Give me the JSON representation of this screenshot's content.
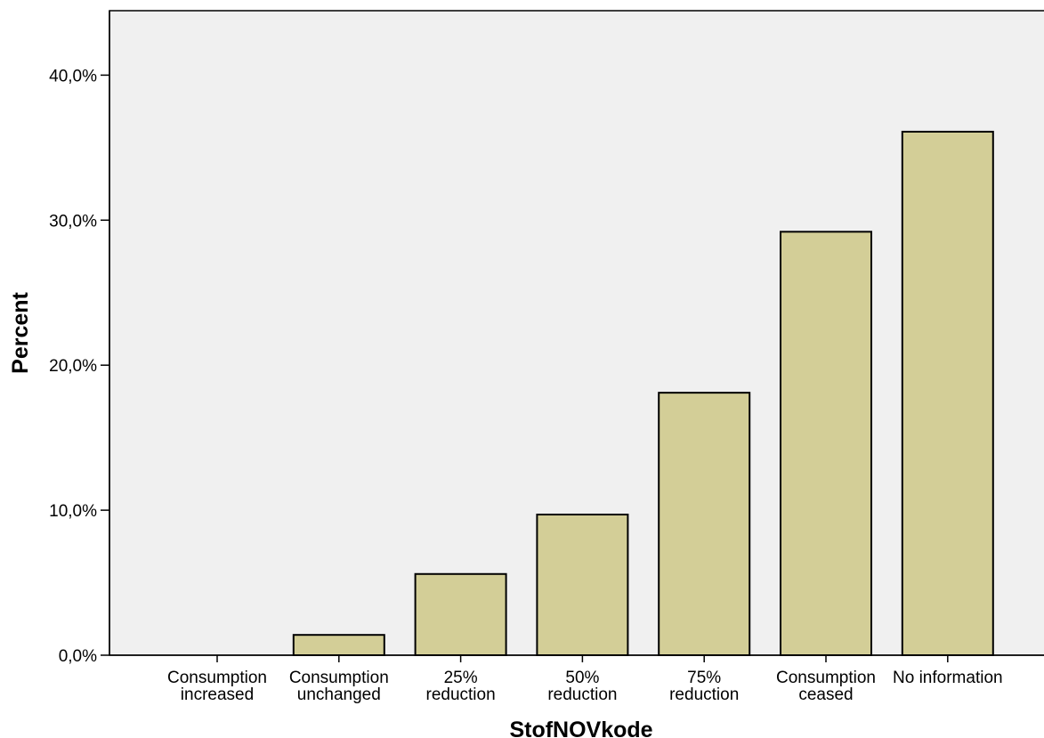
{
  "chart_data": {
    "type": "bar",
    "xlabel": "StofNOVkode",
    "ylabel": "Percent",
    "ylim": [
      0,
      44.5
    ],
    "yticks": [
      0,
      10,
      20,
      30,
      40
    ],
    "ytick_labels": [
      "0,0%",
      "10,0%",
      "20,0%",
      "30,0%",
      "40,0%"
    ],
    "categories": [
      [
        "Consumption",
        "increased"
      ],
      [
        "Consumption",
        "unchanged"
      ],
      [
        "25%",
        "reduction"
      ],
      [
        "50%",
        "reduction"
      ],
      [
        "75%",
        "reduction"
      ],
      [
        "Consumption",
        "ceased"
      ],
      [
        "No information"
      ]
    ],
    "values": [
      0.0,
      1.4,
      5.6,
      9.7,
      18.1,
      29.2,
      36.1
    ],
    "grid": false,
    "colors": {
      "bar_fill": "#d3ce97",
      "bar_stroke": "#000000",
      "plot_background": "#f0f0f0"
    }
  }
}
